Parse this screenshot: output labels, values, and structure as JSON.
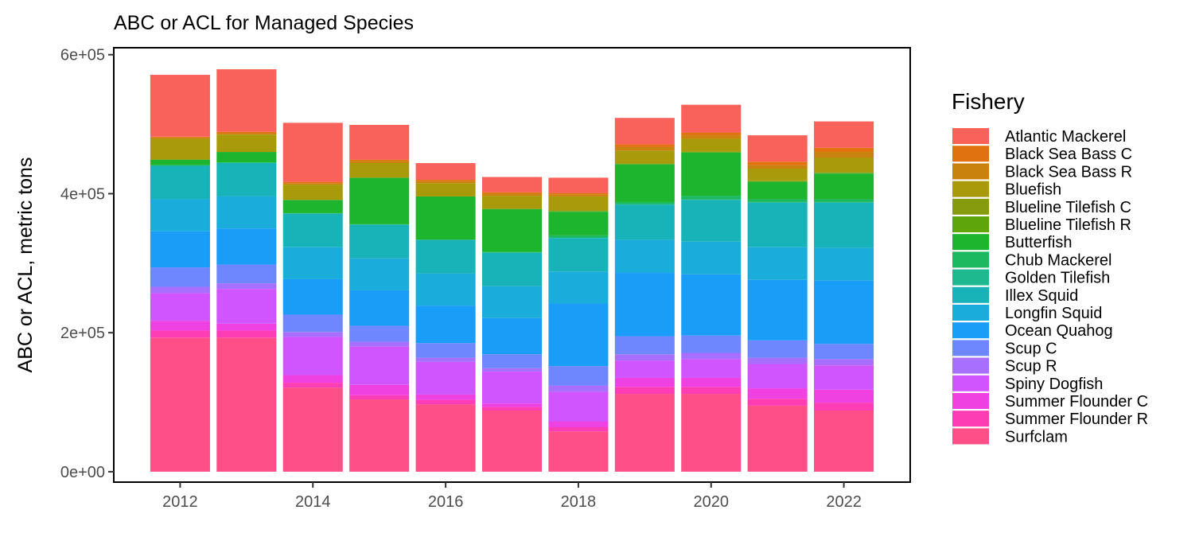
{
  "chart_data": {
    "type": "bar",
    "stacked": true,
    "title": "ABC or ACL for Managed Species",
    "xlabel": "",
    "ylabel": "ABC or ACL, metric tons",
    "xlim": [
      2011,
      2023
    ],
    "ylim": [
      -15000,
      610000
    ],
    "x_ticks": [
      2012,
      2014,
      2016,
      2018,
      2020,
      2022
    ],
    "y_ticks": [
      {
        "value": 0,
        "label": "0e+00"
      },
      {
        "value": 200000,
        "label": "2e+05"
      },
      {
        "value": 400000,
        "label": "4e+05"
      },
      {
        "value": 600000,
        "label": "6e+05"
      }
    ],
    "grid": false,
    "legend": {
      "title": "Fishery",
      "position": "right"
    },
    "categories": [
      2012,
      2013,
      2014,
      2015,
      2016,
      2017,
      2018,
      2019,
      2020,
      2021,
      2022
    ],
    "series": [
      {
        "name": "Surfclam",
        "color": "#FF4F89",
        "values": [
          193000,
          193000,
          121000,
          104000,
          97000,
          88000,
          58000,
          112000,
          112000,
          95000,
          88000
        ]
      },
      {
        "name": "Summer Flounder R",
        "color": "#FD3DB3",
        "values": [
          10000,
          10000,
          7000,
          6000,
          6000,
          5000,
          6000,
          10000,
          10000,
          10000,
          11000
        ]
      },
      {
        "name": "Summer Flounder C",
        "color": "#EF40E2",
        "values": [
          14000,
          10000,
          11000,
          15000,
          8000,
          5000,
          8000,
          13000,
          13000,
          15000,
          19000
        ]
      },
      {
        "name": "Spiny Dogfish",
        "color": "#D055FE",
        "values": [
          40000,
          50000,
          55000,
          55000,
          47000,
          46000,
          43000,
          25000,
          27000,
          35000,
          35000
        ]
      },
      {
        "name": "Scup R",
        "color": "#A86FFE",
        "values": [
          9000,
          8000,
          7000,
          7000,
          6000,
          5000,
          9000,
          9000,
          9000,
          9000,
          9000
        ]
      },
      {
        "name": "Scup C",
        "color": "#6E87FF",
        "values": [
          28000,
          27000,
          25000,
          23000,
          21000,
          20000,
          28000,
          26000,
          25000,
          25000,
          22000
        ]
      },
      {
        "name": "Ocean Quahog",
        "color": "#1A9DF7",
        "values": [
          52000,
          52000,
          51000,
          51000,
          54000,
          52000,
          90000,
          91000,
          88000,
          87000,
          91000
        ]
      },
      {
        "name": "Longfin Squid",
        "color": "#1AACDB",
        "values": [
          46000,
          46000,
          46000,
          46000,
          46000,
          46000,
          46000,
          48000,
          47000,
          47000,
          47000
        ]
      },
      {
        "name": "Illex Squid",
        "color": "#18B3B8",
        "values": [
          48000,
          48000,
          48000,
          48000,
          48000,
          48000,
          48000,
          50000,
          60000,
          64000,
          65000
        ]
      },
      {
        "name": "Golden Tilefish",
        "color": "#1EB98F",
        "values": [
          1000,
          1000,
          1000,
          1000,
          1000,
          1000,
          1000,
          1000,
          1000,
          1000,
          1000
        ]
      },
      {
        "name": "Chub Mackerel",
        "color": "#1DB960",
        "values": [
          0,
          0,
          0,
          0,
          0,
          0,
          3000,
          3000,
          5000,
          4000,
          4000
        ]
      },
      {
        "name": "Butterfish",
        "color": "#1CB52D",
        "values": [
          8000,
          15000,
          19000,
          67000,
          62000,
          62000,
          34000,
          54000,
          62000,
          25000,
          37000
        ]
      },
      {
        "name": "Blueline Tilefish R",
        "color": "#5EA50C",
        "values": [
          0,
          0,
          0,
          0,
          0,
          0,
          1000,
          1000,
          1000,
          1000,
          1000
        ]
      },
      {
        "name": "Blueline Tilefish C",
        "color": "#869B0D",
        "values": [
          0,
          0,
          0,
          0,
          0,
          0,
          1000,
          1000,
          1000,
          1000,
          1000
        ]
      },
      {
        "name": "Bluefish",
        "color": "#A89A0A",
        "values": [
          30000,
          25000,
          22000,
          21000,
          19000,
          19000,
          20000,
          18000,
          18000,
          17000,
          21000
        ]
      },
      {
        "name": "Black Sea Bass R",
        "color": "#CA820E",
        "values": [
          2000,
          2000,
          2000,
          3000,
          3000,
          3000,
          3000,
          5000,
          5000,
          5000,
          8000
        ]
      },
      {
        "name": "Black Sea Bass C",
        "color": "#E0720F",
        "values": [
          1000,
          2000,
          2000,
          2000,
          2000,
          2000,
          2000,
          4000,
          4000,
          5000,
          6000
        ]
      },
      {
        "name": "Atlantic Mackerel",
        "color": "#F8625A",
        "values": [
          89000,
          90000,
          85000,
          50000,
          24000,
          22000,
          22000,
          38000,
          40000,
          38000,
          38000
        ]
      }
    ],
    "legend_order": [
      "Atlantic Mackerel",
      "Black Sea Bass C",
      "Black Sea Bass R",
      "Bluefish",
      "Blueline Tilefish C",
      "Blueline Tilefish R",
      "Butterfish",
      "Chub Mackerel",
      "Golden Tilefish",
      "Illex Squid",
      "Longfin Squid",
      "Ocean Quahog",
      "Scup C",
      "Scup R",
      "Spiny Dogfish",
      "Summer Flounder C",
      "Summer Flounder R",
      "Surfclam"
    ]
  }
}
